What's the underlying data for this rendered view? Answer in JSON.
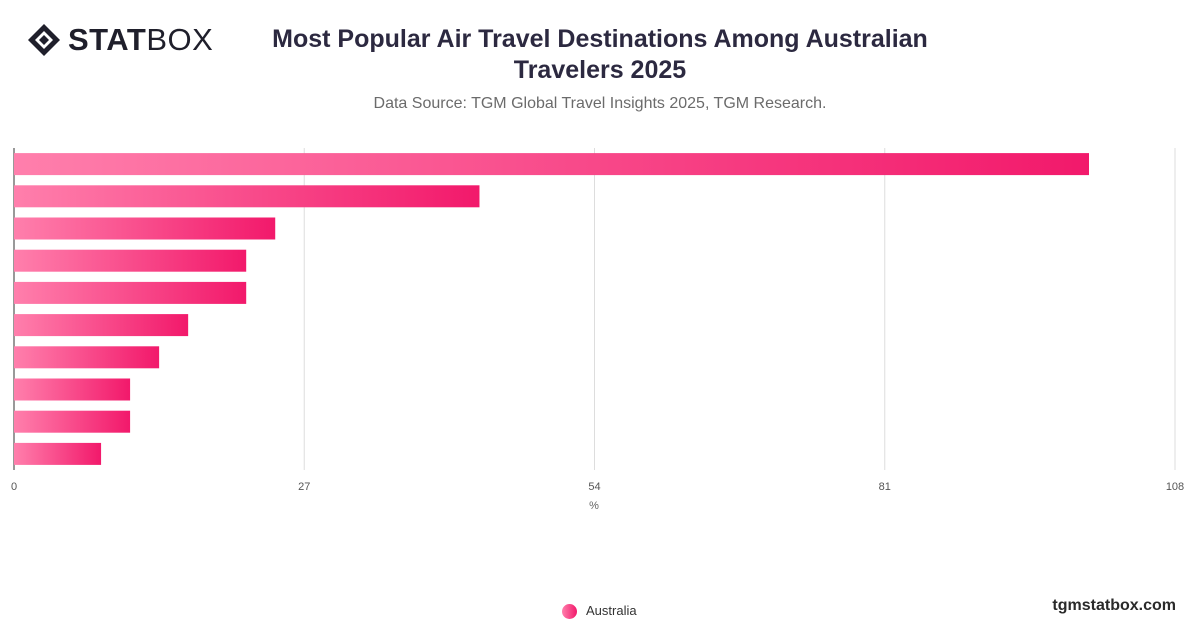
{
  "brand": {
    "logo_bold": "STAT",
    "logo_light": "BOX",
    "website": "tgmstatbox.com"
  },
  "header": {
    "title": "Most Popular Air Travel Destinations Among Australian Travelers 2025",
    "subtitle": "Data Source: TGM Global Travel Insights 2025, TGM Research."
  },
  "colors": {
    "bar_start": "#ff7fac",
    "bar_end": "#f2196b",
    "title": "#2c2940",
    "grid": "#dddddd"
  },
  "chart_data": {
    "type": "bar",
    "orientation": "horizontal",
    "categories": [
      "",
      "",
      "",
      "",
      "",
      "",
      "",
      "",
      "",
      ""
    ],
    "series": [
      {
        "name": "Australia",
        "values": [
          100,
          43.3,
          24.3,
          21.6,
          21.6,
          16.2,
          13.5,
          10.8,
          10.8,
          8.1
        ]
      }
    ],
    "xlim": [
      0,
      108
    ],
    "xticks": [
      0,
      27,
      54,
      81,
      108
    ],
    "xlabel": "%",
    "ylabel": "",
    "grid": true,
    "legend_position": "bottom-center"
  }
}
